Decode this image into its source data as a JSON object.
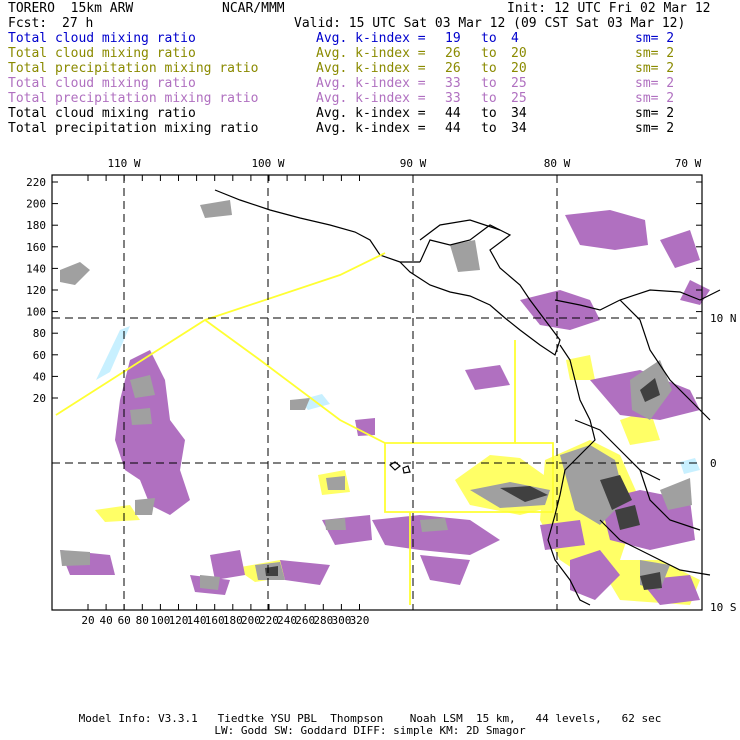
{
  "header": {
    "model": "TORERO  15km ARW",
    "org": "NCAR/MMM",
    "init": "Init: 12 UTC Fri 02 Mar 12",
    "fcst_label": "Fcst:",
    "fcst_value": "27 h",
    "valid": "Valid: 15 UTC Sat 03 Mar 12 (09 CST Sat 03 Mar 12)"
  },
  "legend": [
    {
      "field": "Total cloud mixing ratio",
      "index": "Avg. k-index =",
      "from": "19",
      "to_word": "to",
      "to": "4",
      "sm": "sm= 2",
      "color": "#0000cc"
    },
    {
      "field": "Total cloud mixing ratio",
      "index": "Avg. k-index =",
      "from": "26",
      "to_word": "to",
      "to": "20",
      "sm": "sm= 2",
      "color": "#8a8a00"
    },
    {
      "field": "Total precipitation mixing ratio",
      "index": "Avg. k-index =",
      "from": "26",
      "to_word": "to",
      "to": "20",
      "sm": "sm= 2",
      "color": "#8a8a00"
    },
    {
      "field": "Total cloud mixing ratio",
      "index": "Avg. k-index =",
      "from": "33",
      "to_word": "to",
      "to": "25",
      "sm": "sm= 2",
      "color": "#b070c0"
    },
    {
      "field": "Total precipitation mixing ratio",
      "index": "Avg. k-index =",
      "from": "33",
      "to_word": "to",
      "to": "25",
      "sm": "sm= 2",
      "color": "#b070c0"
    },
    {
      "field": "Total cloud mixing ratio",
      "index": "Avg. k-index =",
      "from": "44",
      "to_word": "to",
      "to": "34",
      "sm": "sm= 2",
      "color": "#000000"
    },
    {
      "field": "Total precipitation mixing ratio",
      "index": "Avg. k-index =",
      "from": "44",
      "to_word": "to",
      "to": "34",
      "sm": "sm= 2",
      "color": "#000000"
    }
  ],
  "map": {
    "lon_labels": [
      "110 W",
      "100 W",
      "90 W",
      "80 W",
      "70 W"
    ],
    "lat_labels": [
      "10 N",
      "0",
      "10 S"
    ],
    "y_ticks": [
      "220",
      "200",
      "180",
      "160",
      "140",
      "120",
      "100",
      "80",
      "60",
      "40",
      "20"
    ],
    "x_ticks": [
      "20",
      "40",
      "60",
      "80",
      "100",
      "120",
      "140",
      "160",
      "180",
      "200",
      "220",
      "240",
      "260",
      "280",
      "300",
      "320"
    ],
    "colors": {
      "frame": "#000000",
      "coast": "#000000",
      "box": "#ffff33",
      "cloud_light": "#c8c8c8",
      "cloud_mid": "#a0a0a0",
      "cloud_dark": "#404040",
      "precip_purple": "#b070c0",
      "precip_yellow": "#ffff66",
      "light_cyan": "#c8f0ff"
    }
  },
  "footer": {
    "line1": "Model Info: V3.3.1   Tiedtke YSU PBL  Thompson    Noah LSM  15 km,   44 levels,   62 sec",
    "line2": "LW: Godd SW: Goddard DIFF: simple KM: 2D Smagor"
  }
}
